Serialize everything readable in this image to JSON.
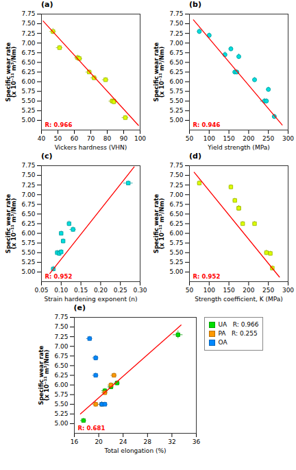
{
  "chart_data": [
    {
      "type": "scatter",
      "title": "(a)",
      "xlabel": "Vickers hardness (VHN)",
      "ylabel": "Specific wear rate\n(x 10⁻¹¹ m³/Nm)",
      "xlim": [
        40,
        100
      ],
      "ylim": [
        4.75,
        7.75
      ],
      "xticks": [
        40,
        50,
        60,
        70,
        80,
        90,
        100
      ],
      "yticks": [
        {
          "value": 5.0,
          "label": "5.00"
        },
        5.25,
        {
          "value": 5.5,
          "label": "5.50"
        },
        5.75,
        {
          "value": 6,
          "label": "6.00"
        },
        6.25,
        {
          "value": 6.5,
          "label": "6.50"
        },
        6.75,
        {
          "value": 7,
          "label": "7.00"
        },
        7.25,
        {
          "value": 7.5,
          "label": "7.50"
        },
        7.75
      ],
      "series": [
        {
          "type": "scatter",
          "marker": "square",
          "color": "#ddff00",
          "x": [
            47,
            51,
            62,
            63,
            69,
            72,
            79,
            83,
            84,
            84,
            91
          ],
          "values": [
            7.3,
            6.88,
            6.62,
            6.6,
            6.25,
            6.1,
            6.05,
            5.5,
            5.5,
            5.48,
            5.07
          ],
          "xerr": [
            2,
            2,
            2,
            2,
            2,
            2,
            2,
            2,
            2,
            2,
            2
          ],
          "yerr": [
            0.08,
            0.06,
            0.07,
            0.07,
            0.06,
            0.06,
            0.06,
            0.06,
            0.07,
            0.07,
            0.06
          ]
        },
        {
          "type": "line",
          "color": "red",
          "x": [
            41,
            99
          ],
          "values": [
            7.57,
            4.87
          ]
        }
      ],
      "annotations": [
        {
          "text": "R: 0.966",
          "color": "red"
        }
      ]
    },
    {
      "type": "scatter",
      "title": "(b)",
      "xlabel": "Yield strength (MPa)",
      "ylabel": "Specific wear rate\n(x 10⁻¹¹ m³/Nm)",
      "xlim": [
        50,
        300
      ],
      "ylim": [
        4.75,
        7.75
      ],
      "xticks": [
        50,
        100,
        150,
        200,
        250,
        300
      ],
      "yticks": [
        {
          "value": 5.0,
          "label": "5.00"
        },
        5.25,
        {
          "value": 5.5,
          "label": "5.50"
        },
        5.75,
        {
          "value": 6,
          "label": "6.00"
        },
        6.25,
        {
          "value": 6.5,
          "label": "6.50"
        },
        6.75,
        {
          "value": 7,
          "label": "7.00"
        },
        7.25,
        {
          "value": 7.5,
          "label": "7.50"
        },
        7.75
      ],
      "series": [
        {
          "type": "scatter",
          "marker": "circle",
          "color": "#00dddd",
          "x": [
            75,
            100,
            140,
            155,
            165,
            170,
            175,
            215,
            240,
            245,
            250,
            265
          ],
          "values": [
            7.3,
            7.2,
            6.7,
            6.85,
            6.25,
            6.25,
            6.65,
            6.05,
            5.5,
            5.5,
            5.8,
            5.1
          ],
          "xerr": [
            5,
            5,
            5,
            5,
            5,
            5,
            5,
            5,
            10,
            5,
            5,
            5
          ],
          "yerr": [
            0.07,
            0.06,
            0.07,
            0.06,
            0.06,
            0.06,
            0.07,
            0.06,
            0.07,
            0.06,
            0.06,
            0.06
          ]
        },
        {
          "type": "line",
          "color": "red",
          "x": [
            60,
            285
          ],
          "values": [
            7.6,
            4.88
          ]
        }
      ],
      "annotations": [
        {
          "text": "R: 0.946",
          "color": "red"
        }
      ]
    },
    {
      "type": "scatter",
      "title": "(c)",
      "xlabel": "Strain hardening exponent (n)",
      "ylabel": "Specific wear rate\n(x 10⁻¹¹ m³/Nm)",
      "xlim": [
        0.05,
        0.3
      ],
      "ylim": [
        4.75,
        7.75
      ],
      "xticks": [
        0.05,
        {
          "value": 0.1,
          "label": "0.10"
        },
        0.15,
        {
          "value": 0.2,
          "label": "0.20"
        },
        0.25,
        {
          "value": 0.3,
          "label": "0.30"
        }
      ],
      "yticks": [
        {
          "value": 5.0,
          "label": "5.00"
        },
        5.25,
        {
          "value": 5.5,
          "label": "5.50"
        },
        5.75,
        {
          "value": 6,
          "label": "6.00"
        },
        6.25,
        {
          "value": 6.5,
          "label": "6.50"
        },
        6.75,
        {
          "value": 7,
          "label": "7.00"
        },
        7.25,
        {
          "value": 7.5,
          "label": "7.50"
        },
        7.75
      ],
      "series": [
        {
          "type": "scatter",
          "marker": "square",
          "color": "#00dddd",
          "x": [
            0.08,
            0.09,
            0.095,
            0.1,
            0.1,
            0.105,
            0.12,
            0.13,
            0.27
          ],
          "values": [
            5.08,
            5.5,
            5.48,
            5.52,
            6.0,
            5.8,
            6.25,
            6.1,
            7.3
          ],
          "xerr": [
            0.005,
            0.005,
            0.005,
            0.005,
            0.005,
            0.005,
            0.005,
            0.008,
            0.012
          ],
          "yerr": [
            0.07,
            0.06,
            0.07,
            0.06,
            0.06,
            0.06,
            0.07,
            0.07,
            0.06
          ]
        },
        {
          "type": "line",
          "color": "red",
          "x": [
            0.065,
            0.285
          ],
          "values": [
            4.88,
            7.72
          ]
        }
      ],
      "annotations": [
        {
          "text": "R: 0.952",
          "color": "red"
        }
      ]
    },
    {
      "type": "scatter",
      "title": "(d)",
      "xlabel": "Strength coefficient, K (MPa)",
      "ylabel": "Specific wear rate\n(x 10⁻¹¹ m³/Nm)",
      "xlim": [
        50,
        300
      ],
      "ylim": [
        4.75,
        7.75
      ],
      "xticks": [
        50,
        100,
        150,
        200,
        250,
        300
      ],
      "yticks": [
        {
          "value": 5.0,
          "label": "5.00"
        },
        5.25,
        {
          "value": 5.5,
          "label": "5.50"
        },
        5.75,
        {
          "value": 6,
          "label": "6.00"
        },
        6.25,
        {
          "value": 6.5,
          "label": "6.50"
        },
        6.75,
        {
          "value": 7,
          "label": "7.00"
        },
        7.25,
        {
          "value": 7.5,
          "label": "7.50"
        },
        7.75
      ],
      "series": [
        {
          "type": "scatter",
          "marker": "square",
          "color": "#ddff00",
          "x": [
            75,
            155,
            165,
            175,
            175,
            185,
            215,
            245,
            255,
            260
          ],
          "values": [
            7.3,
            7.2,
            6.85,
            6.65,
            6.65,
            6.25,
            6.25,
            5.5,
            5.48,
            5.1
          ],
          "xerr": [
            5,
            5,
            5,
            5,
            5,
            5,
            5,
            5,
            5,
            5
          ],
          "yerr": [
            0.07,
            0.06,
            0.06,
            0.07,
            0.07,
            0.06,
            0.06,
            0.07,
            0.06,
            0.06
          ]
        },
        {
          "type": "line",
          "color": "red",
          "x": [
            62,
            278
          ],
          "values": [
            7.58,
            4.87
          ]
        }
      ],
      "annotations": [
        {
          "text": "R: 0.952",
          "color": "red"
        }
      ]
    },
    {
      "type": "scatter",
      "title": "(e)",
      "xlabel": "Total elongation (%)",
      "ylabel": "Specific wear rate\n(x 10⁻¹¹ m³/Nm)",
      "xlim": [
        16,
        36
      ],
      "ylim": [
        4.75,
        7.75
      ],
      "xticks": [
        16,
        20,
        24,
        28,
        32,
        36
      ],
      "yticks": [
        {
          "value": 5.0,
          "label": "5.00"
        },
        5.25,
        {
          "value": 5.5,
          "label": "5.50"
        },
        5.75,
        {
          "value": 6,
          "label": "6.00"
        },
        6.25,
        {
          "value": 6.5,
          "label": "6.50"
        },
        6.75,
        {
          "value": 7,
          "label": "7.00"
        },
        7.25,
        {
          "value": 7.5,
          "label": "7.50"
        },
        7.75
      ],
      "legend": "upper right",
      "series": [
        {
          "name": "UA   R: 0.966",
          "type": "scatter",
          "marker": "square",
          "color": "#00dd00",
          "x": [
            17.5,
            21,
            22,
            23,
            33
          ],
          "values": [
            5.08,
            5.85,
            5.95,
            6.05,
            7.3
          ],
          "xerr": [
            0.5,
            0.5,
            0.5,
            0.5,
            0.8
          ],
          "yerr": [
            0.06,
            0.06,
            0.06,
            0.06,
            0.1
          ]
        },
        {
          "name": "PA   R: 0.255",
          "type": "scatter",
          "marker": "square",
          "color": "#ff9900",
          "x": [
            19.5,
            20.5,
            21,
            22,
            22.5
          ],
          "values": [
            5.5,
            5.5,
            5.8,
            6.0,
            6.25
          ],
          "xerr": [
            0.5,
            0.5,
            0.5,
            0.5,
            0.5
          ],
          "yerr": [
            0.07,
            0.06,
            0.06,
            0.06,
            0.06
          ]
        },
        {
          "name": "OA",
          "type": "scatter",
          "marker": "square",
          "color": "#0088ff",
          "x": [
            18.5,
            19.5,
            19.5,
            20.5,
            21
          ],
          "values": [
            7.2,
            6.7,
            6.25,
            5.5,
            5.5
          ],
          "xerr": [
            0.5,
            0.5,
            0.5,
            0.5,
            0.5
          ],
          "yerr": [
            0.06,
            0.07,
            0.06,
            0.07,
            0.06
          ]
        },
        {
          "type": "line",
          "color": "red",
          "x": [
            17,
            33.5
          ],
          "values": [
            5.25,
            7.55
          ]
        }
      ],
      "annotations": [
        {
          "text": "R: 0.681",
          "color": "red"
        }
      ]
    }
  ]
}
